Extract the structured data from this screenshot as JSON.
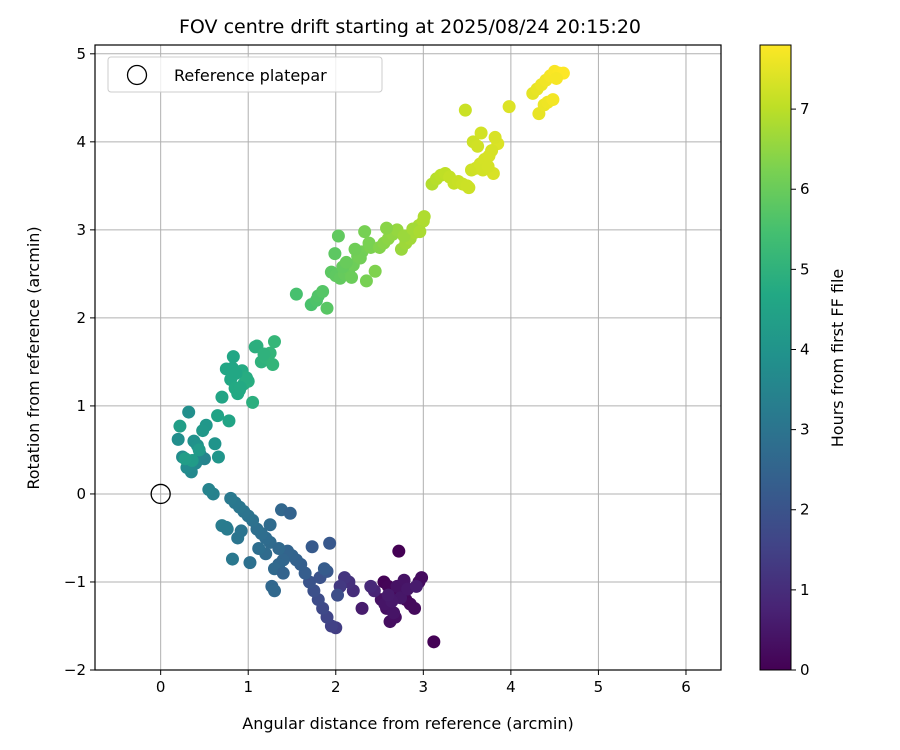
{
  "chart_data": {
    "type": "scatter",
    "title": "FOV centre drift starting at 2025/08/24 20:15:20",
    "xlabel": "Angular distance from reference (arcmin)",
    "ylabel": "Rotation from reference (arcmin)",
    "xlim": [
      -0.75,
      6.4
    ],
    "ylim": [
      -2.0,
      5.1
    ],
    "xticks": [
      0,
      1,
      2,
      3,
      4,
      5,
      6
    ],
    "yticks": [
      -2,
      -1,
      0,
      1,
      2,
      3,
      4,
      5
    ],
    "xtick_labels": [
      "0",
      "1",
      "2",
      "3",
      "4",
      "5",
      "6"
    ],
    "ytick_labels": [
      "−2",
      "−1",
      "0",
      "1",
      "2",
      "3",
      "4",
      "5"
    ],
    "grid": true,
    "legend": {
      "position": "top-left",
      "entries": [
        "Reference platepar"
      ]
    },
    "colormap": "viridis",
    "colorbar": {
      "label": "Hours from first FF file",
      "range": [
        0,
        7.8
      ],
      "ticks": [
        0,
        1,
        2,
        3,
        4,
        5,
        6,
        7
      ],
      "tick_labels": [
        "0",
        "1",
        "2",
        "3",
        "4",
        "5",
        "6",
        "7"
      ]
    },
    "reference_point": {
      "name": "Reference platepar",
      "x": 0,
      "y": 0
    },
    "series": [
      {
        "name": "FOV centre",
        "x": [
          2.72,
          3.12,
          2.55,
          2.6,
          2.65,
          2.75,
          2.8,
          2.85,
          2.9,
          2.95,
          2.98,
          2.62,
          2.68,
          2.58,
          2.52,
          2.7,
          2.78,
          2.66,
          2.56,
          2.74,
          2.82,
          2.64,
          2.6,
          2.92,
          2.3,
          2.44,
          2.4,
          2.2,
          2.15,
          2.1,
          2.05,
          2.0,
          1.95,
          1.9,
          1.85,
          1.8,
          1.75,
          1.7,
          1.82,
          1.9,
          2.02,
          1.93,
          1.73,
          1.87,
          1.65,
          1.6,
          1.55,
          1.5,
          1.45,
          1.4,
          1.35,
          1.3,
          1.25,
          1.2,
          1.15,
          1.1,
          1.05,
          1.0,
          0.95,
          0.9,
          0.85,
          0.8,
          0.75,
          0.7,
          1.27,
          1.3,
          1.4,
          1.2,
          1.12,
          1.25,
          1.38,
          1.48,
          0.88,
          1.02,
          0.92,
          0.82,
          0.76,
          1.35,
          0.6,
          0.55,
          0.5,
          0.45,
          0.4,
          0.35,
          0.3,
          0.25,
          0.2,
          0.32,
          0.38,
          0.42,
          0.62,
          0.66,
          0.52,
          0.48,
          0.44,
          0.36,
          0.28,
          0.22,
          0.65,
          0.7,
          0.75,
          0.8,
          0.85,
          0.9,
          0.95,
          1.0,
          1.05,
          1.1,
          1.15,
          1.2,
          1.25,
          1.3,
          0.78,
          0.83,
          0.88,
          0.93,
          0.98,
          1.08,
          1.28,
          1.18,
          0.82,
          0.86,
          0.91,
          1.55,
          1.72,
          1.78,
          1.8,
          1.85,
          1.9,
          1.95,
          2.0,
          2.05,
          2.1,
          2.15,
          2.2,
          2.25,
          2.3,
          2.35,
          2.4,
          2.45,
          1.99,
          2.03,
          2.08,
          2.12,
          2.28,
          2.33,
          2.38,
          2.18,
          2.22,
          2.5,
          2.55,
          2.6,
          2.65,
          2.7,
          2.75,
          2.8,
          2.85,
          2.9,
          2.95,
          3.0,
          2.58,
          2.78,
          2.88,
          2.96,
          3.01,
          3.1,
          3.15,
          3.2,
          3.25,
          3.3,
          3.35,
          3.4,
          3.45,
          3.5,
          3.55,
          3.6,
          3.65,
          3.7,
          3.75,
          3.8,
          3.85,
          3.52,
          3.57,
          3.62,
          3.68,
          3.74,
          3.78,
          3.82,
          3.48,
          3.66,
          3.98,
          4.25,
          4.3,
          4.35,
          4.4,
          4.45,
          4.5,
          4.55,
          4.6,
          4.32,
          4.38,
          4.42,
          4.48,
          4.52
        ],
        "y": [
          -0.65,
          -1.68,
          -1.0,
          -1.05,
          -1.1,
          -1.15,
          -1.2,
          -1.25,
          -1.3,
          -1.0,
          -0.95,
          -1.45,
          -1.4,
          -1.3,
          -1.2,
          -1.05,
          -0.98,
          -1.35,
          -1.25,
          -1.18,
          -1.08,
          -1.22,
          -1.15,
          -1.05,
          -1.3,
          -1.1,
          -1.05,
          -1.1,
          -1.0,
          -0.95,
          -1.05,
          -1.52,
          -1.5,
          -1.4,
          -1.3,
          -1.2,
          -1.1,
          -1.0,
          -0.95,
          -0.88,
          -1.15,
          -0.56,
          -0.6,
          -0.85,
          -0.9,
          -0.8,
          -0.75,
          -0.7,
          -0.65,
          -0.75,
          -0.8,
          -0.85,
          -0.55,
          -0.5,
          -0.45,
          -0.4,
          -0.3,
          -0.25,
          -0.2,
          -0.15,
          -0.1,
          -0.05,
          -0.38,
          -0.36,
          -1.05,
          -1.1,
          -0.9,
          -0.68,
          -0.62,
          -0.35,
          -0.18,
          -0.22,
          -0.5,
          -0.78,
          -0.42,
          -0.74,
          -0.4,
          -0.62,
          0.0,
          0.05,
          0.4,
          0.45,
          0.35,
          0.25,
          0.3,
          0.42,
          0.62,
          0.93,
          0.6,
          0.55,
          0.57,
          0.42,
          0.78,
          0.72,
          0.5,
          0.38,
          0.4,
          0.77,
          0.89,
          1.1,
          1.42,
          1.3,
          1.2,
          1.18,
          1.25,
          1.28,
          1.04,
          1.68,
          1.5,
          1.55,
          1.6,
          1.73,
          0.83,
          1.56,
          1.14,
          1.4,
          1.32,
          1.67,
          1.47,
          1.59,
          1.43,
          1.37,
          1.21,
          2.27,
          2.15,
          2.2,
          2.25,
          2.3,
          2.11,
          2.52,
          2.48,
          2.45,
          2.5,
          2.55,
          2.6,
          2.7,
          2.75,
          2.42,
          2.8,
          2.53,
          2.73,
          2.93,
          2.58,
          2.63,
          2.68,
          2.98,
          2.85,
          2.46,
          2.78,
          2.8,
          2.85,
          2.9,
          2.95,
          3.0,
          2.78,
          2.85,
          2.9,
          2.97,
          3.05,
          3.1,
          3.02,
          2.93,
          3.01,
          2.98,
          3.15,
          3.52,
          3.58,
          3.62,
          3.64,
          3.6,
          3.53,
          3.55,
          3.52,
          3.5,
          3.68,
          3.7,
          3.75,
          3.8,
          3.84,
          3.64,
          3.98,
          3.48,
          4.0,
          3.95,
          3.68,
          3.72,
          3.9,
          4.05,
          4.36,
          4.1,
          4.4,
          4.55,
          4.6,
          4.65,
          4.7,
          4.75,
          4.8,
          4.78,
          4.78,
          4.32,
          4.42,
          4.45,
          4.48,
          4.72
        ],
        "hours": [
          0.0,
          0.02,
          0.05,
          0.08,
          0.1,
          0.12,
          0.15,
          0.18,
          0.2,
          0.22,
          0.25,
          0.28,
          0.3,
          0.32,
          0.35,
          0.38,
          0.4,
          0.42,
          0.45,
          0.48,
          0.5,
          0.52,
          0.55,
          0.58,
          0.6,
          0.8,
          0.9,
          1.0,
          1.1,
          1.2,
          1.3,
          1.4,
          1.5,
          1.6,
          1.7,
          1.8,
          1.9,
          2.0,
          1.95,
          2.1,
          1.85,
          2.15,
          2.2,
          2.25,
          2.3,
          2.35,
          2.4,
          2.45,
          2.5,
          2.55,
          2.6,
          2.65,
          2.7,
          2.75,
          2.8,
          2.85,
          2.9,
          2.95,
          3.0,
          3.05,
          3.1,
          3.15,
          3.2,
          3.25,
          2.6,
          2.62,
          2.5,
          2.72,
          2.82,
          2.7,
          2.58,
          2.48,
          3.02,
          2.88,
          3.0,
          3.12,
          3.2,
          2.65,
          3.4,
          3.45,
          3.5,
          3.55,
          3.6,
          3.65,
          3.7,
          3.75,
          3.8,
          3.85,
          3.9,
          3.95,
          4.0,
          4.05,
          4.1,
          4.15,
          4.2,
          4.25,
          4.3,
          4.35,
          4.5,
          4.55,
          4.6,
          4.65,
          4.7,
          4.75,
          4.8,
          4.85,
          4.9,
          4.95,
          5.0,
          5.05,
          5.1,
          5.15,
          4.55,
          4.62,
          4.7,
          4.75,
          4.8,
          4.9,
          5.1,
          5.0,
          4.62,
          4.66,
          4.72,
          5.5,
          5.55,
          5.6,
          5.65,
          5.7,
          5.75,
          5.8,
          5.85,
          5.9,
          5.95,
          6.0,
          6.05,
          6.1,
          6.15,
          6.2,
          6.25,
          6.3,
          5.82,
          5.88,
          5.92,
          5.98,
          6.12,
          6.18,
          6.22,
          6.02,
          6.08,
          6.35,
          6.4,
          6.45,
          6.5,
          6.55,
          6.6,
          6.65,
          6.7,
          6.75,
          6.8,
          6.85,
          6.42,
          6.62,
          6.72,
          6.8,
          6.86,
          6.9,
          6.95,
          7.0,
          7.05,
          7.1,
          7.12,
          7.15,
          7.18,
          7.2,
          7.22,
          7.25,
          7.28,
          7.3,
          7.32,
          7.35,
          7.38,
          7.2,
          7.22,
          7.25,
          7.28,
          7.3,
          7.32,
          7.35,
          7.18,
          7.27,
          7.4,
          7.5,
          7.55,
          7.6,
          7.65,
          7.7,
          7.75,
          7.78,
          7.8,
          7.55,
          7.58,
          7.62,
          7.68,
          7.72
        ]
      }
    ]
  }
}
